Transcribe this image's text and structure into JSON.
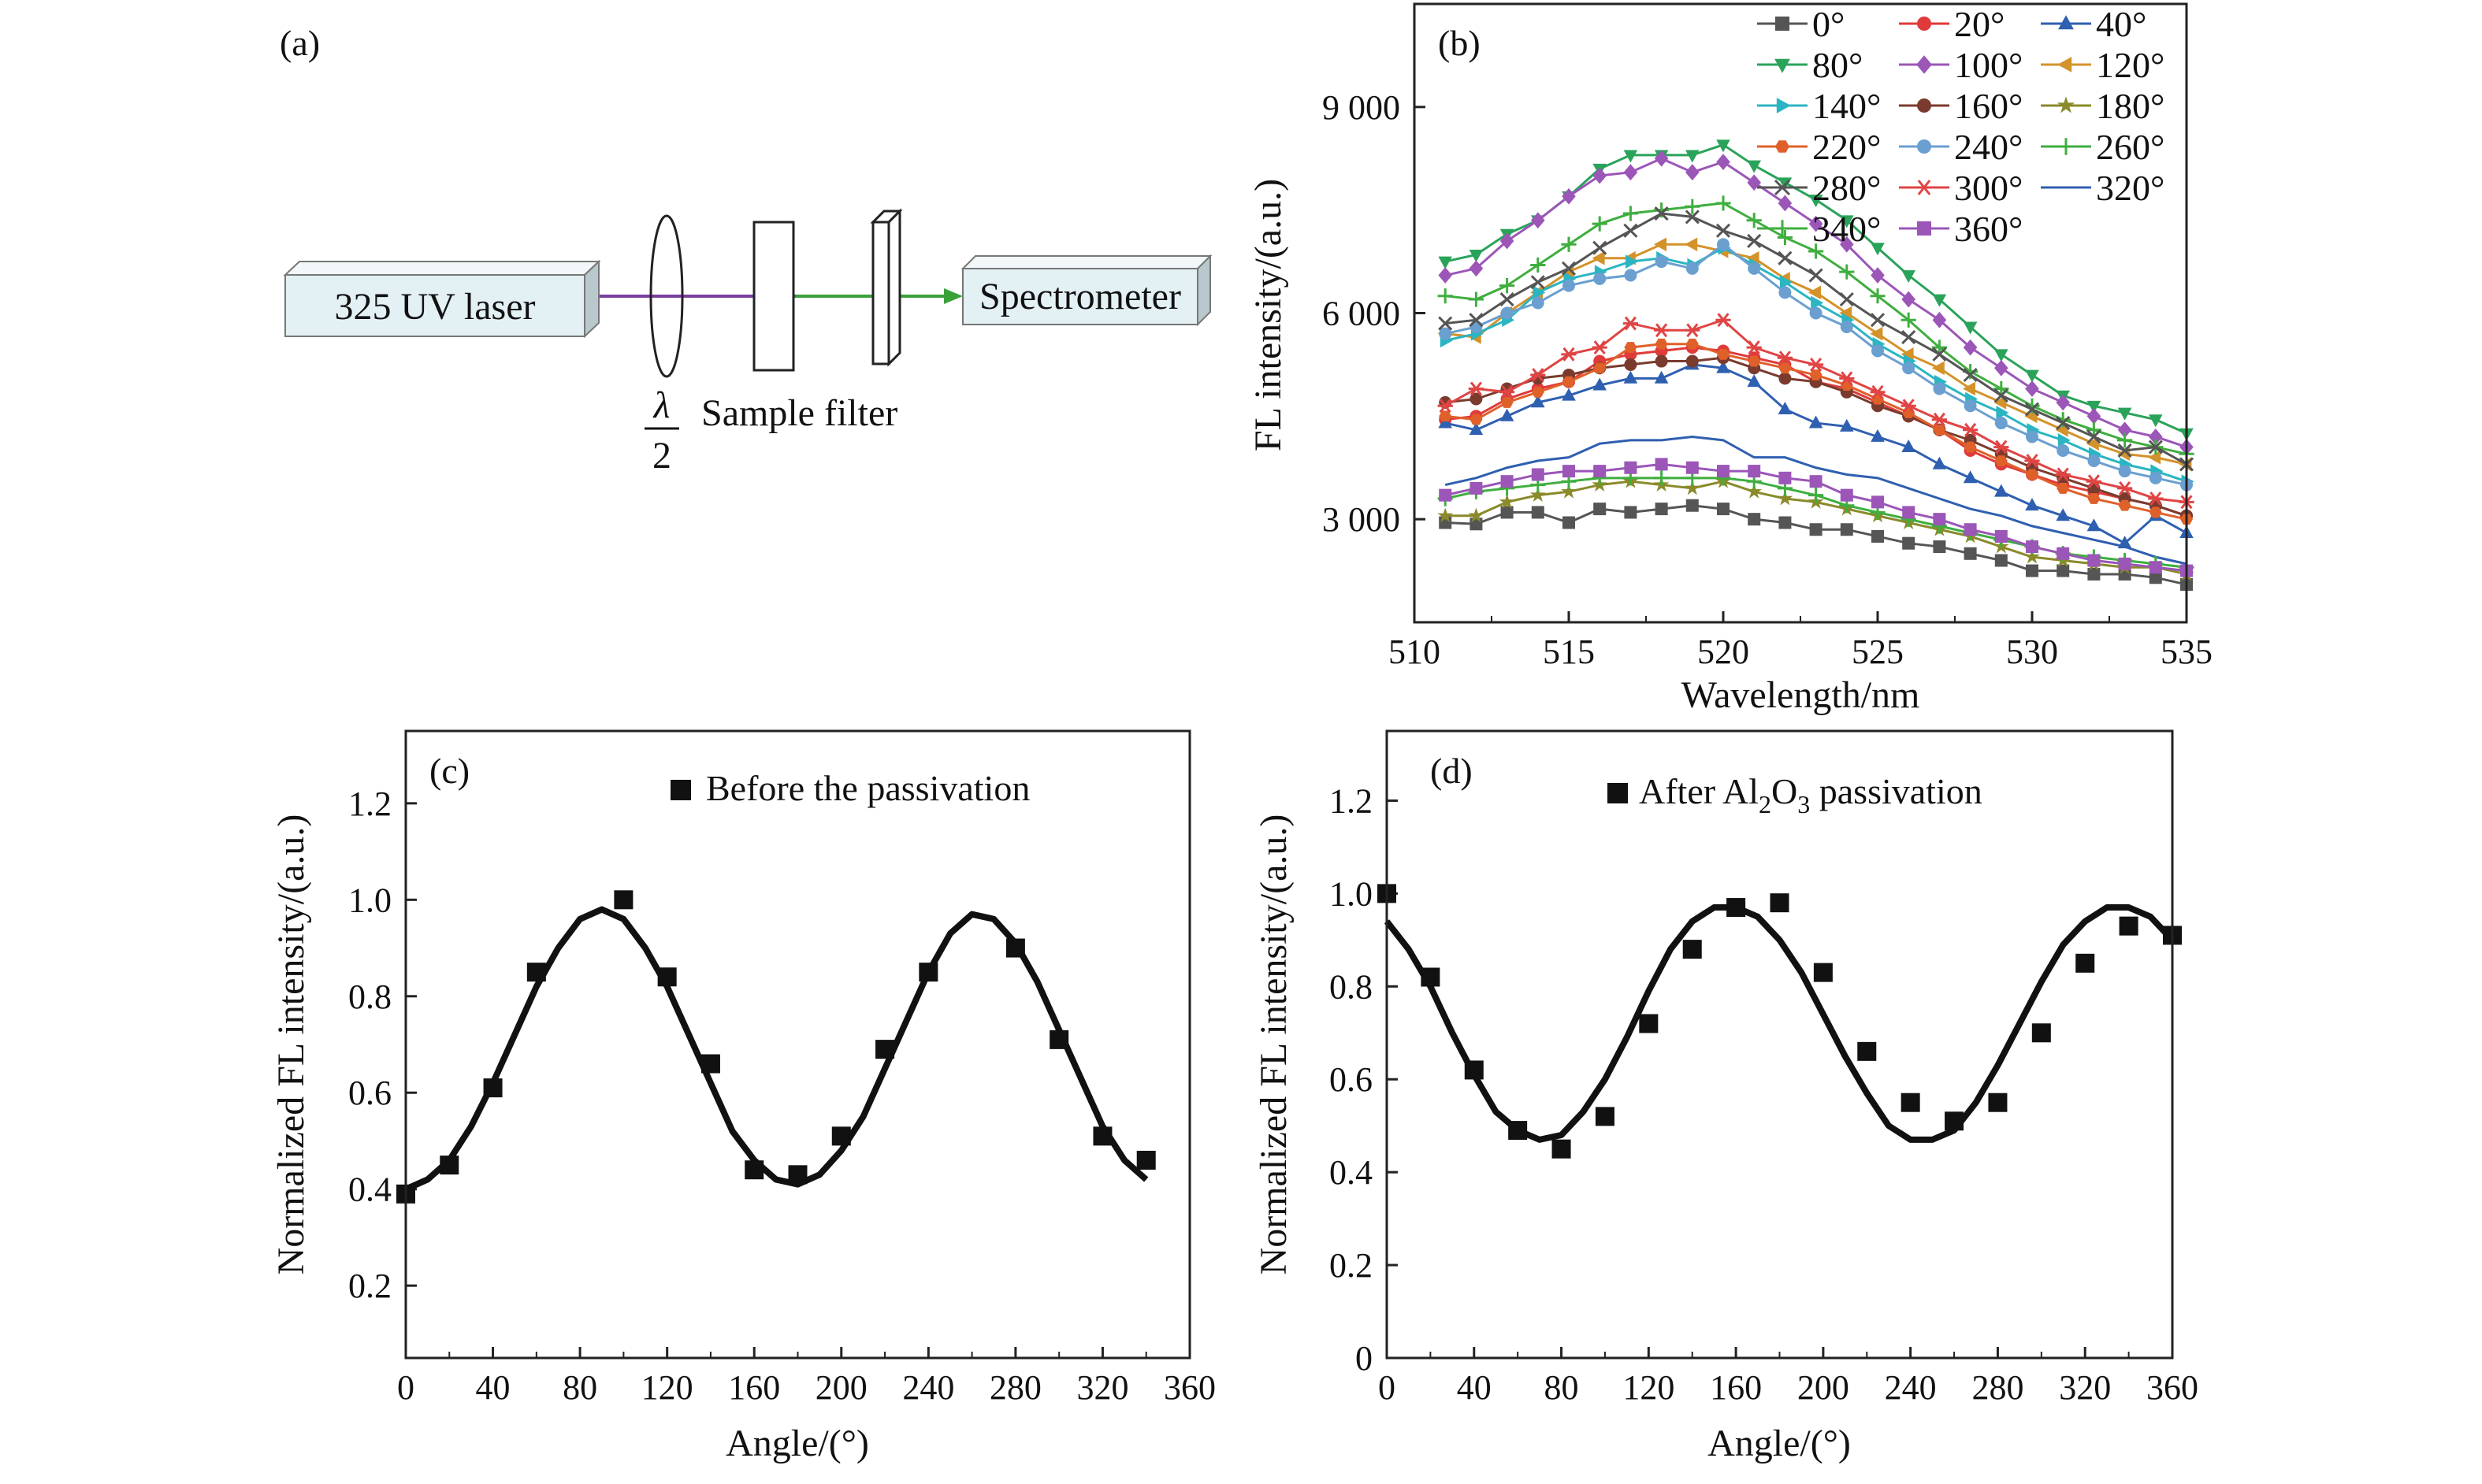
{
  "panel_labels": {
    "a": "(a)",
    "b": "(b)",
    "c": "(c)",
    "d": "(d)"
  },
  "diagram": {
    "laser_label": "325 UV laser",
    "spectrometer_label": "Spectrometer",
    "halfwave_symbol": "λ",
    "halfwave_denominator": "2",
    "sample_filter_label": "Sample filter",
    "colors": {
      "laser_beam": "#7a3fa0",
      "filtered_beam": "#3aa13a",
      "box_fill": "#e3f0f4"
    }
  },
  "chart_data": [
    {
      "id": "b",
      "type": "line",
      "xlabel": "Wavelength/nm",
      "ylabel": "FL intensity/(a.u.)",
      "xlim": [
        510,
        535
      ],
      "ylim": [
        1500,
        10500
      ],
      "xticks": [
        510,
        515,
        520,
        525,
        530,
        535
      ],
      "xtick_labels": [
        "510",
        "515",
        "520",
        "525",
        "530",
        "535"
      ],
      "yticks": [
        3000,
        6000,
        9000
      ],
      "ytick_labels": [
        "3 000",
        "6 000",
        "9 000"
      ],
      "legend_position": "top-right",
      "x": [
        511,
        512,
        513,
        514,
        515,
        516,
        517,
        518,
        519,
        520,
        521,
        522,
        523,
        524,
        525,
        526,
        527,
        528,
        529,
        530,
        531,
        532,
        533,
        534,
        535
      ],
      "series": [
        {
          "name": "0°",
          "color": "#555555",
          "marker": "square",
          "values": [
            2950,
            2930,
            3100,
            3100,
            2950,
            3150,
            3100,
            3150,
            3200,
            3150,
            3000,
            2950,
            2850,
            2850,
            2750,
            2650,
            2600,
            2500,
            2400,
            2250,
            2250,
            2200,
            2200,
            2150,
            2050
          ]
        },
        {
          "name": "20°",
          "color": "#e03a3a",
          "marker": "circle",
          "values": [
            4450,
            4500,
            4750,
            4900,
            5000,
            5300,
            5400,
            5450,
            5500,
            5450,
            5350,
            5250,
            5000,
            4900,
            4700,
            4500,
            4300,
            4000,
            3800,
            3650,
            3500,
            3400,
            3300,
            3200,
            3050
          ]
        },
        {
          "name": "40°",
          "color": "#2f5fb0",
          "marker": "triangle-up",
          "values": [
            4400,
            4300,
            4500,
            4700,
            4800,
            4950,
            5050,
            5050,
            5250,
            5200,
            5000,
            4600,
            4400,
            4350,
            4200,
            4050,
            3800,
            3600,
            3400,
            3200,
            3050,
            2900,
            2650,
            3050,
            2800
          ]
        },
        {
          "name": "80°",
          "color": "#2aa35a",
          "marker": "triangle-down",
          "values": [
            6750,
            6850,
            7150,
            7350,
            7700,
            8100,
            8300,
            8300,
            8300,
            8450,
            8150,
            7900,
            7650,
            7350,
            6950,
            6550,
            6200,
            5800,
            5400,
            5100,
            4800,
            4650,
            4550,
            4450,
            4250
          ]
        },
        {
          "name": "100°",
          "color": "#9b56b8",
          "marker": "diamond",
          "values": [
            6550,
            6650,
            7050,
            7350,
            7700,
            8000,
            8050,
            8250,
            8050,
            8200,
            7900,
            7600,
            7300,
            7000,
            6550,
            6200,
            5900,
            5500,
            5200,
            4900,
            4700,
            4500,
            4300,
            4200,
            4050
          ]
        },
        {
          "name": "120°",
          "color": "#d4922a",
          "marker": "triangle-left",
          "values": [
            5700,
            5650,
            6000,
            6300,
            6600,
            6800,
            6800,
            7000,
            7000,
            6900,
            6800,
            6500,
            6300,
            6000,
            5700,
            5400,
            5200,
            4900,
            4700,
            4500,
            4300,
            4100,
            3950,
            3900,
            3800
          ]
        },
        {
          "name": "140°",
          "color": "#2bb5c2",
          "marker": "triangle-right",
          "values": [
            5600,
            5700,
            5900,
            6300,
            6500,
            6600,
            6750,
            6800,
            6700,
            6950,
            6700,
            6450,
            6150,
            5900,
            5550,
            5300,
            5000,
            4750,
            4550,
            4300,
            4150,
            3950,
            3800,
            3700,
            3550
          ]
        },
        {
          "name": "160°",
          "color": "#7a3b2e",
          "marker": "circle",
          "values": [
            4700,
            4750,
            4900,
            5050,
            5100,
            5200,
            5250,
            5300,
            5300,
            5350,
            5200,
            5050,
            5000,
            4850,
            4650,
            4500,
            4300,
            4150,
            3950,
            3750,
            3600,
            3450,
            3300,
            3200,
            3050
          ]
        },
        {
          "name": "180°",
          "color": "#8a8a2a",
          "marker": "star",
          "values": [
            3050,
            3050,
            3250,
            3350,
            3400,
            3500,
            3550,
            3500,
            3450,
            3550,
            3400,
            3300,
            3250,
            3150,
            3050,
            2950,
            2850,
            2750,
            2600,
            2450,
            2400,
            2350,
            2300,
            2300,
            2200
          ]
        },
        {
          "name": "220°",
          "color": "#e0602a",
          "marker": "hexagon",
          "values": [
            4500,
            4450,
            4700,
            4850,
            5000,
            5200,
            5500,
            5550,
            5550,
            5400,
            5300,
            5200,
            5100,
            4950,
            4750,
            4550,
            4300,
            4050,
            3850,
            3650,
            3450,
            3300,
            3200,
            3100,
            3000
          ]
        },
        {
          "name": "240°",
          "color": "#6a9fd0",
          "marker": "circle",
          "values": [
            5700,
            5800,
            6000,
            6150,
            6400,
            6500,
            6550,
            6750,
            6650,
            7000,
            6650,
            6300,
            6000,
            5800,
            5450,
            5200,
            4900,
            4650,
            4400,
            4200,
            4000,
            3850,
            3700,
            3600,
            3500
          ]
        },
        {
          "name": "260°",
          "color": "#3fae3f",
          "marker": "plus",
          "values": [
            6250,
            6200,
            6400,
            6700,
            7000,
            7300,
            7450,
            7500,
            7550,
            7600,
            7350,
            7100,
            6900,
            6600,
            6250,
            5900,
            5500,
            5150,
            4900,
            4650,
            4450,
            4300,
            4150,
            4050,
            3950
          ]
        },
        {
          "name": "280°",
          "color": "#555555",
          "marker": "x",
          "values": [
            5850,
            5900,
            6200,
            6450,
            6650,
            6950,
            7200,
            7450,
            7400,
            7200,
            7050,
            6800,
            6550,
            6200,
            5900,
            5650,
            5400,
            5100,
            4800,
            4600,
            4400,
            4200,
            4000,
            4050,
            3800
          ]
        },
        {
          "name": "300°",
          "color": "#e04444",
          "marker": "asterisk",
          "values": [
            4650,
            4900,
            4850,
            5100,
            5400,
            5500,
            5850,
            5750,
            5750,
            5900,
            5500,
            5350,
            5250,
            5050,
            4850,
            4650,
            4450,
            4300,
            4050,
            3850,
            3650,
            3550,
            3450,
            3300,
            3250
          ]
        },
        {
          "name": "320°",
          "color": "#2f5fb0",
          "marker": "none",
          "values": [
            3500,
            3600,
            3750,
            3850,
            3900,
            4100,
            4150,
            4150,
            4200,
            4150,
            3900,
            3900,
            3750,
            3650,
            3600,
            3450,
            3300,
            3150,
            3050,
            2900,
            2800,
            2700,
            2600,
            2450,
            2350
          ]
        },
        {
          "name": "340°",
          "color": "#3fae3f",
          "marker": "plus",
          "values": [
            3300,
            3400,
            3450,
            3500,
            3550,
            3600,
            3600,
            3600,
            3600,
            3600,
            3550,
            3450,
            3350,
            3200,
            3100,
            3000,
            2900,
            2800,
            2700,
            2600,
            2500,
            2450,
            2400,
            2350,
            2300
          ]
        },
        {
          "name": "360°",
          "color": "#9b56b8",
          "marker": "square",
          "values": [
            3350,
            3450,
            3550,
            3650,
            3700,
            3700,
            3750,
            3800,
            3750,
            3700,
            3700,
            3600,
            3550,
            3350,
            3250,
            3100,
            3000,
            2850,
            2750,
            2600,
            2500,
            2400,
            2350,
            2300,
            2250
          ]
        }
      ]
    },
    {
      "id": "c",
      "type": "scatter",
      "legend": "Before the passivation",
      "legend_position": "top-right",
      "xlabel": "Angle/(°)",
      "ylabel": "Normalized FL intensity/(a.u.)",
      "xlim": [
        0,
        360
      ],
      "ylim": [
        0.05,
        1.35
      ],
      "xticks": [
        0,
        40,
        80,
        120,
        160,
        200,
        240,
        280,
        320,
        360
      ],
      "xtick_labels": [
        "0",
        "40",
        "80",
        "120",
        "160",
        "200",
        "240",
        "280",
        "320",
        "360"
      ],
      "yticks": [
        0.2,
        0.4,
        0.6,
        0.8,
        1.0,
        1.2
      ],
      "ytick_labels": [
        "0.2",
        "0.4",
        "0.6",
        "0.8",
        "1.0",
        "1.2"
      ],
      "points": {
        "x": [
          0,
          20,
          40,
          60,
          100,
          120,
          140,
          160,
          180,
          200,
          220,
          240,
          280,
          300,
          320,
          340
        ],
        "y": [
          0.39,
          0.45,
          0.61,
          0.85,
          1.0,
          0.84,
          0.66,
          0.44,
          0.43,
          0.51,
          0.69,
          0.85,
          0.9,
          0.71,
          0.51,
          0.46
        ]
      },
      "fit": {
        "x": [
          0,
          10,
          20,
          30,
          40,
          50,
          60,
          70,
          80,
          90,
          100,
          110,
          120,
          130,
          140,
          150,
          160,
          170,
          180,
          190,
          200,
          210,
          220,
          230,
          240,
          250,
          260,
          270,
          280,
          290,
          300,
          310,
          320,
          330,
          340
        ],
        "y": [
          0.4,
          0.42,
          0.46,
          0.53,
          0.62,
          0.72,
          0.82,
          0.9,
          0.96,
          0.98,
          0.96,
          0.9,
          0.82,
          0.72,
          0.62,
          0.52,
          0.46,
          0.42,
          0.41,
          0.43,
          0.48,
          0.55,
          0.65,
          0.75,
          0.85,
          0.93,
          0.97,
          0.96,
          0.91,
          0.83,
          0.73,
          0.63,
          0.53,
          0.46,
          0.42
        ]
      }
    },
    {
      "id": "d",
      "type": "scatter",
      "legend": "After Al",
      "legend_sub1": "2",
      "legend_mid": "O",
      "legend_sub2": "3",
      "legend_tail": " passivation",
      "legend_position": "top-right",
      "xlabel": "Angle/(°)",
      "ylabel": "Normalized FL intensity/(a.u.)",
      "xlim": [
        0,
        360
      ],
      "ylim": [
        0,
        1.35
      ],
      "xticks": [
        0,
        40,
        80,
        120,
        160,
        200,
        240,
        280,
        320,
        360
      ],
      "xtick_labels": [
        "0",
        "40",
        "80",
        "120",
        "160",
        "200",
        "240",
        "280",
        "320",
        "360"
      ],
      "yticks": [
        0,
        0.2,
        0.4,
        0.6,
        0.8,
        1.0,
        1.2
      ],
      "ytick_labels": [
        "0",
        "0.2",
        "0.4",
        "0.6",
        "0.8",
        "1.0",
        "1.2"
      ],
      "points": {
        "x": [
          0,
          20,
          40,
          60,
          80,
          100,
          120,
          140,
          160,
          180,
          200,
          220,
          240,
          260,
          280,
          300,
          320,
          340,
          360
        ],
        "y": [
          1.0,
          0.82,
          0.62,
          0.49,
          0.45,
          0.52,
          0.72,
          0.88,
          0.97,
          0.98,
          0.83,
          0.66,
          0.55,
          0.51,
          0.55,
          0.7,
          0.85,
          0.93,
          0.91
        ]
      },
      "fit": {
        "x": [
          0,
          10,
          20,
          30,
          40,
          50,
          60,
          70,
          80,
          90,
          100,
          110,
          120,
          130,
          140,
          150,
          160,
          170,
          180,
          190,
          200,
          210,
          220,
          230,
          240,
          250,
          260,
          270,
          280,
          290,
          300,
          310,
          320,
          330,
          340,
          350,
          360
        ],
        "y": [
          0.94,
          0.88,
          0.8,
          0.7,
          0.61,
          0.53,
          0.49,
          0.47,
          0.48,
          0.53,
          0.6,
          0.69,
          0.79,
          0.88,
          0.94,
          0.97,
          0.97,
          0.95,
          0.9,
          0.83,
          0.74,
          0.65,
          0.57,
          0.5,
          0.47,
          0.47,
          0.49,
          0.55,
          0.63,
          0.72,
          0.81,
          0.89,
          0.94,
          0.97,
          0.97,
          0.95,
          0.9
        ]
      }
    }
  ]
}
